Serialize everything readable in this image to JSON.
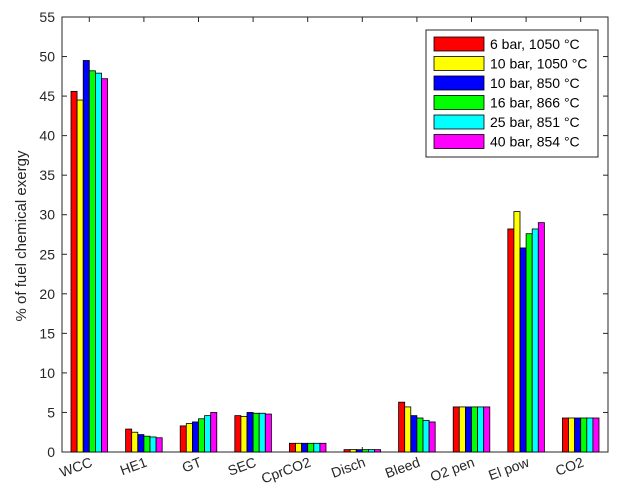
{
  "chart_data": {
    "type": "bar",
    "title": "",
    "xlabel": "",
    "ylabel": "% of fuel chemical exergy",
    "ylim": [
      0,
      55
    ],
    "yticks": [
      0,
      5,
      10,
      15,
      20,
      25,
      30,
      35,
      40,
      45,
      50,
      55
    ],
    "grid": false,
    "legend_position": "top-right",
    "categories": [
      "WCC",
      "HE1",
      "GT",
      "SEC",
      "CprCO2",
      "Disch",
      "Bleed",
      "O2 pen",
      "El pow",
      "CO2"
    ],
    "series": [
      {
        "name": "6 bar, 1050 °C",
        "color": "#ff0000",
        "values": [
          45.6,
          2.9,
          3.3,
          4.6,
          1.1,
          0.3,
          6.3,
          5.7,
          28.2,
          4.3
        ]
      },
      {
        "name": "10 bar, 1050 °C",
        "color": "#ffff00",
        "values": [
          44.5,
          2.5,
          3.6,
          4.5,
          1.1,
          0.3,
          5.7,
          5.7,
          30.4,
          4.3
        ]
      },
      {
        "name": "10 bar, 850 °C",
        "color": "#0000ff",
        "values": [
          49.5,
          2.2,
          3.8,
          5.0,
          1.1,
          0.3,
          4.6,
          5.7,
          25.8,
          4.3
        ]
      },
      {
        "name": "16 bar, 866 °C",
        "color": "#00ff00",
        "values": [
          48.2,
          2.0,
          4.2,
          4.9,
          1.1,
          0.3,
          4.3,
          5.7,
          27.6,
          4.3
        ]
      },
      {
        "name": "25 bar, 851 °C",
        "color": "#00ffff",
        "values": [
          47.9,
          1.9,
          4.6,
          4.9,
          1.1,
          0.3,
          4.0,
          5.7,
          28.2,
          4.3
        ]
      },
      {
        "name": "40 bar, 854 °C",
        "color": "#ff00ff",
        "values": [
          47.2,
          1.8,
          5.0,
          4.8,
          1.1,
          0.3,
          3.8,
          5.7,
          29.0,
          4.3
        ]
      }
    ]
  }
}
